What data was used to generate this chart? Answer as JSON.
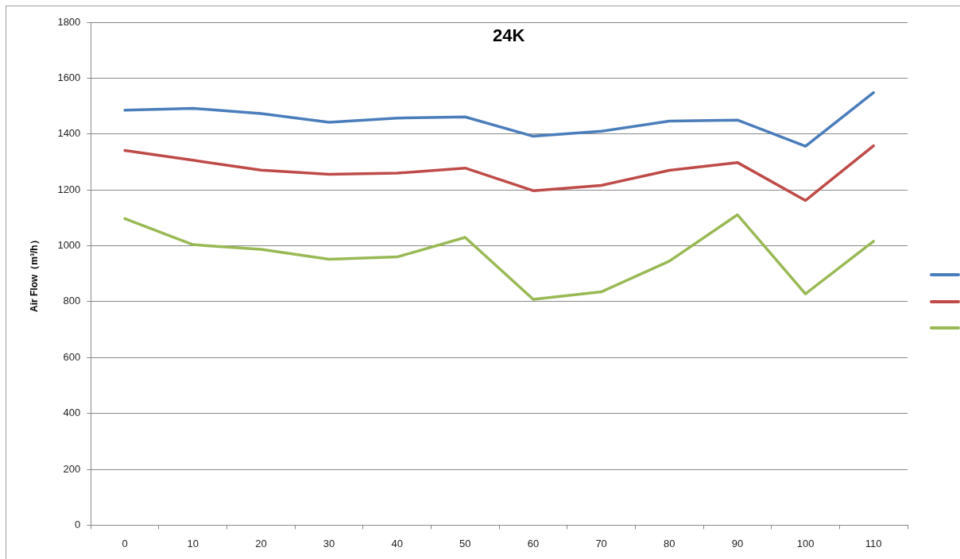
{
  "chart_data": {
    "type": "line",
    "title": "24K",
    "ylabel": "Air Flow（m³/h）",
    "categories": [
      "0",
      "10",
      "20",
      "30",
      "40",
      "50",
      "60",
      "70",
      "80",
      "90",
      "100",
      "110"
    ],
    "series": [
      {
        "color": "#4a7ebb",
        "values": [
          1485,
          1492,
          1473,
          1442,
          1457,
          1461,
          1392,
          1410,
          1446,
          1450,
          1356,
          1548
        ]
      },
      {
        "color": "#be4b48",
        "values": [
          1341,
          1306,
          1271,
          1256,
          1260,
          1278,
          1197,
          1216,
          1270,
          1298,
          1162,
          1358
        ]
      },
      {
        "color": "#98b954",
        "values": [
          1097,
          1004,
          987,
          952,
          960,
          1030,
          808,
          835,
          945,
          1111,
          828,
          1016
        ]
      }
    ],
    "ylim": [
      0,
      1800
    ],
    "yticks": [
      0,
      200,
      400,
      600,
      800,
      1000,
      1200,
      1400,
      1600,
      1800
    ],
    "grid": "y",
    "marker": "none",
    "line_style": "solid"
  }
}
